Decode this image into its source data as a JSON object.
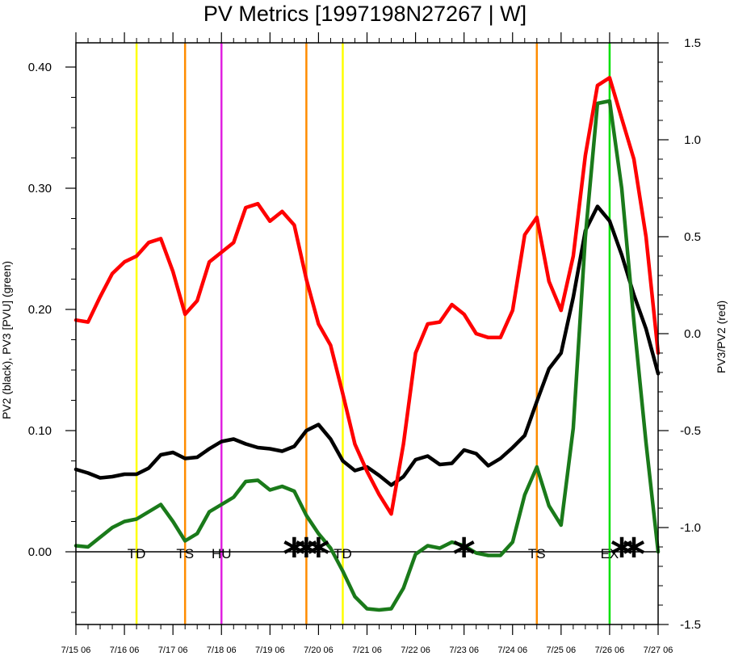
{
  "chart_data": {
    "type": "line",
    "title": "PV Metrics [1997198N27267 | W]",
    "ylabel_left": "PV2 (black), PV3 [PVU] (green)",
    "ylabel_right": "PV3/PV2 (red)",
    "xlabel": "",
    "ylim_left": [
      -0.06,
      0.42
    ],
    "ylim_right": [
      -1.5,
      1.5
    ],
    "xlim_days": [
      0,
      12
    ],
    "x_tick_labels": [
      "7/15 06",
      "7/16 06",
      "7/17 06",
      "7/18 06",
      "7/19 06",
      "7/20 06",
      "7/21 06",
      "7/22 06",
      "7/23 06",
      "7/24 06",
      "7/25 06",
      "7/26 06",
      "7/27 06"
    ],
    "y_left_ticks": [
      "0.00",
      "0.10",
      "0.20",
      "0.30",
      "0.40"
    ],
    "y_left_tick_values": [
      0,
      0.1,
      0.2,
      0.3,
      0.4
    ],
    "y_right_ticks": [
      "-1.5",
      "-1.0",
      "-0.5",
      "0.0",
      "0.5",
      "1.0",
      "1.5"
    ],
    "y_right_tick_values": [
      -1.5,
      -1.0,
      -0.5,
      0.0,
      0.5,
      1.0,
      1.5
    ],
    "zero_line": true,
    "grid": false,
    "legend": "none",
    "series": [
      {
        "axis": "left",
        "color": "#000000",
        "x": [
          0,
          0.25,
          0.5,
          0.75,
          1,
          1.25,
          1.5,
          1.75,
          2,
          2.25,
          2.5,
          2.75,
          3,
          3.25,
          3.5,
          3.75,
          4,
          4.25,
          4.5,
          4.75,
          5,
          5.25,
          5.5,
          5.75,
          6,
          6.25,
          6.5,
          6.75,
          7,
          7.25,
          7.5,
          7.75,
          8,
          8.25,
          8.5,
          8.75,
          9,
          9.25,
          9.5,
          9.75,
          10,
          10.25,
          10.5,
          10.75,
          11,
          11.25,
          11.5,
          11.75,
          12
        ],
        "values": [
          0.068,
          0.065,
          0.061,
          0.062,
          0.064,
          0.064,
          0.069,
          0.08,
          0.082,
          0.077,
          0.078,
          0.085,
          0.091,
          0.093,
          0.089,
          0.086,
          0.085,
          0.083,
          0.087,
          0.1,
          0.105,
          0.093,
          0.075,
          0.067,
          0.07,
          0.063,
          0.055,
          0.062,
          0.076,
          0.079,
          0.072,
          0.073,
          0.084,
          0.081,
          0.071,
          0.077,
          0.086,
          0.096,
          0.124,
          0.151,
          0.164,
          0.21,
          0.265,
          0.285,
          0.273,
          0.245,
          0.212,
          0.184,
          0.147
        ]
      },
      {
        "axis": "left",
        "color": "#1a7a1a",
        "x": [
          0,
          0.25,
          0.5,
          0.75,
          1,
          1.25,
          1.5,
          1.75,
          2,
          2.25,
          2.5,
          2.75,
          3,
          3.25,
          3.5,
          3.75,
          4,
          4.25,
          4.5,
          4.75,
          5,
          5.25,
          5.5,
          5.75,
          6,
          6.25,
          6.5,
          6.75,
          7,
          7.25,
          7.5,
          7.75,
          8,
          8.25,
          8.5,
          8.75,
          9,
          9.25,
          9.5,
          9.75,
          10,
          10.25,
          10.5,
          10.75,
          11,
          11.25,
          11.5,
          11.75,
          12
        ],
        "values": [
          0.005,
          0.004,
          0.012,
          0.02,
          0.025,
          0.027,
          0.033,
          0.039,
          0.025,
          0.009,
          0.015,
          0.033,
          0.039,
          0.045,
          0.058,
          0.059,
          0.051,
          0.054,
          0.05,
          0.03,
          0.015,
          0.003,
          -0.016,
          -0.037,
          -0.047,
          -0.048,
          -0.047,
          -0.03,
          -0.002,
          0.005,
          0.003,
          0.008,
          0.005,
          -0.001,
          -0.003,
          -0.003,
          0.008,
          0.047,
          0.07,
          0.038,
          0.022,
          0.102,
          0.26,
          0.37,
          0.372,
          0.3,
          0.19,
          0.09,
          0.0
        ]
      },
      {
        "axis": "right",
        "color": "#ff0000",
        "x": [
          0,
          0.25,
          0.5,
          0.75,
          1,
          1.25,
          1.5,
          1.75,
          2,
          2.25,
          2.5,
          2.75,
          3,
          3.25,
          3.5,
          3.75,
          4,
          4.25,
          4.5,
          4.75,
          5,
          5.25,
          5.5,
          5.75,
          6,
          6.25,
          6.5,
          6.75,
          7,
          7.25,
          7.5,
          7.75,
          8,
          8.25,
          8.5,
          8.75,
          9,
          9.25,
          9.5,
          9.75,
          10,
          10.25,
          10.5,
          10.75,
          11,
          11.25,
          11.5,
          11.75,
          12
        ],
        "values": [
          0.07,
          0.06,
          0.19,
          0.31,
          0.37,
          0.4,
          0.47,
          0.49,
          0.32,
          0.1,
          0.17,
          0.37,
          0.42,
          0.47,
          0.65,
          0.67,
          0.58,
          0.63,
          0.56,
          0.28,
          0.05,
          -0.06,
          -0.31,
          -0.57,
          -0.71,
          -0.83,
          -0.93,
          -0.57,
          -0.1,
          0.05,
          0.06,
          0.15,
          0.1,
          0.0,
          -0.02,
          -0.02,
          0.12,
          0.51,
          0.6,
          0.27,
          0.12,
          0.4,
          0.92,
          1.28,
          1.32,
          1.11,
          0.9,
          0.5,
          -0.1
        ]
      }
    ],
    "event_lines": [
      {
        "x": 1.25,
        "color": "#ffff00"
      },
      {
        "x": 2.25,
        "color": "#ff8c00"
      },
      {
        "x": 3.0,
        "color": "#e020e0"
      },
      {
        "x": 4.75,
        "color": "#ff8c00"
      },
      {
        "x": 5.5,
        "color": "#ffff00"
      },
      {
        "x": 9.5,
        "color": "#ff8c00"
      },
      {
        "x": 11.0,
        "color": "#00e000"
      }
    ],
    "stage_labels": [
      {
        "text": "TD",
        "x": 1.25
      },
      {
        "text": "TS",
        "x": 2.25
      },
      {
        "text": "HU",
        "x": 3.0
      },
      {
        "text": "TD",
        "x": 5.5
      },
      {
        "text": "TS",
        "x": 9.5
      },
      {
        "text": "EX",
        "x": 11.0
      }
    ],
    "markers": [
      {
        "symbol": "*",
        "x": 4.5
      },
      {
        "symbol": "*",
        "x": 4.75
      },
      {
        "symbol": "*",
        "x": 5.0
      },
      {
        "symbol": "*",
        "x": 8.0
      },
      {
        "symbol": "*",
        "x": 11.25
      },
      {
        "symbol": "*",
        "x": 11.5
      }
    ]
  }
}
